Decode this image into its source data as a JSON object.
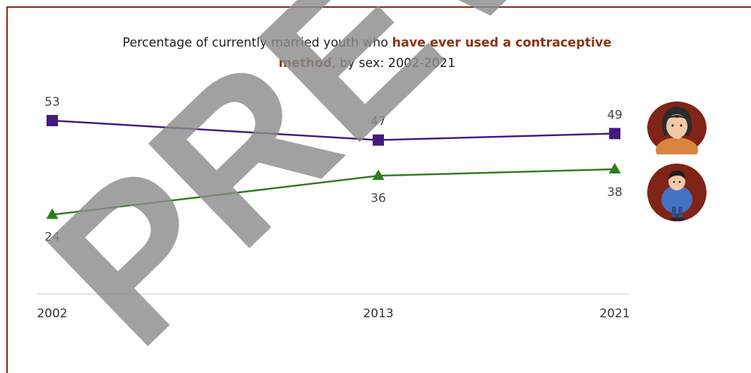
{
  "title": {
    "part1": "Percentage of currently married youth who ",
    "highlight": "have ever used a contraceptive method",
    "part2": ", by sex: 2002-2021"
  },
  "colors": {
    "frame": "#7a2b14",
    "title_highlight": "#8a3414",
    "female": "#45197e",
    "male": "#2e7d1e",
    "axis": "#d9d9d9",
    "avatar_bg": "#7f2416"
  },
  "watermark": {
    "text": "PREVIEW"
  },
  "chart_data": {
    "type": "line",
    "title": "Percentage of currently married youth who have ever used a contraceptive method, by sex: 2002-2021",
    "x": [
      "2002",
      "2013",
      "2021"
    ],
    "series": [
      {
        "values": [
          53,
          47,
          49
        ],
        "marker": "square",
        "color": "#45197e",
        "icon": "woman-avatar-icon"
      },
      {
        "values": [
          24,
          36,
          38
        ],
        "marker": "triangle",
        "color": "#2e7d1e",
        "icon": "man-avatar-icon"
      }
    ],
    "ylim": [
      0,
      60
    ],
    "grid": false,
    "legend": "right, shown as avatar icons"
  }
}
